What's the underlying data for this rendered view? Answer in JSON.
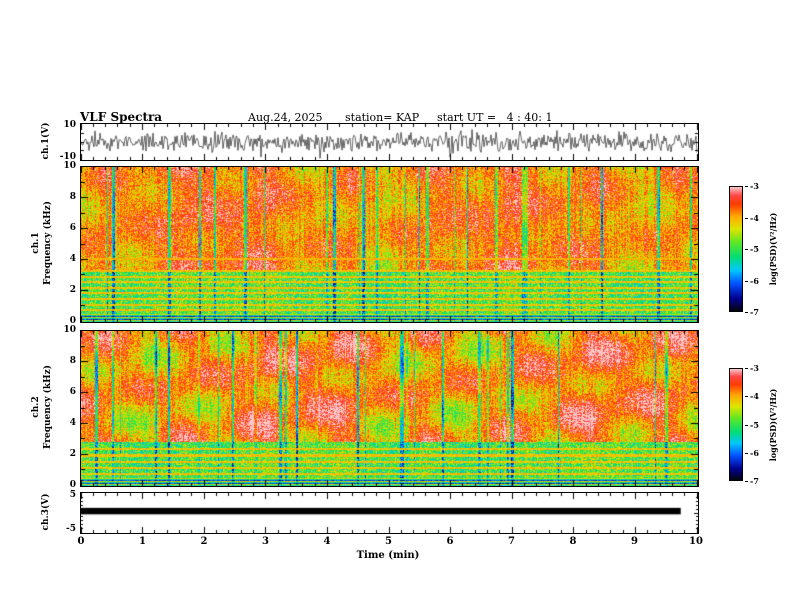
{
  "header": {
    "title": "VLF Spectra",
    "date": "Aug.24, 2025",
    "station": "station= KAP",
    "start_ut": "start UT =   4 : 40: 1"
  },
  "panels": {
    "ch1_wave": {
      "label": "ch.1(V)",
      "ytop": "10",
      "ybottom": "-10"
    },
    "ch1_spec": {
      "channel": "ch.1",
      "axis": "Frequency (kHz)"
    },
    "ch2_spec": {
      "channel": "ch.2",
      "axis": "Frequency (kHz)"
    },
    "ch3_wave": {
      "label": "ch.3(V)",
      "ytop": "5",
      "ybottom": "-5"
    }
  },
  "axes": {
    "xlabel": "Time (min)",
    "xticks": [
      {
        "v": 0,
        "t": "0"
      },
      {
        "v": 1,
        "t": "1"
      },
      {
        "v": 2,
        "t": "2"
      },
      {
        "v": 3,
        "t": "3"
      },
      {
        "v": 4,
        "t": "4"
      },
      {
        "v": 5,
        "t": "5"
      },
      {
        "v": 6,
        "t": "6"
      },
      {
        "v": 7,
        "t": "7"
      },
      {
        "v": 8,
        "t": "8"
      },
      {
        "v": 9,
        "t": "9"
      },
      {
        "v": 10,
        "t": "10"
      }
    ],
    "spec_yticks": [
      {
        "v": 10,
        "t": "10"
      },
      {
        "v": 8,
        "t": "8"
      },
      {
        "v": 6,
        "t": "6"
      },
      {
        "v": 4,
        "t": "4"
      },
      {
        "v": 2,
        "t": "2"
      },
      {
        "v": 0,
        "t": "0"
      }
    ],
    "ch1_yticks": [
      {
        "v": 10,
        "t": "10"
      },
      {
        "v": -10,
        "t": "-10"
      }
    ],
    "ch3_yticks": [
      {
        "v": 5,
        "t": "5"
      },
      {
        "v": -5,
        "t": "-5"
      }
    ]
  },
  "colorbar": {
    "label": "log(PSD)(V²/Hz)",
    "ticks": [
      "-3",
      "-4",
      "-5",
      "-6",
      "-7"
    ],
    "clim": [
      -7,
      -3
    ]
  },
  "colormap": {
    "stops": [
      [
        0,
        "#05050f"
      ],
      [
        0.1,
        "#00008c"
      ],
      [
        0.22,
        "#0050ff"
      ],
      [
        0.33,
        "#00c8ff"
      ],
      [
        0.43,
        "#00dc78"
      ],
      [
        0.55,
        "#5ae628"
      ],
      [
        0.66,
        "#dce600"
      ],
      [
        0.76,
        "#ffaa00"
      ],
      [
        0.86,
        "#ff3c00"
      ],
      [
        0.93,
        "#ff4646"
      ],
      [
        1,
        "#ffc8c8"
      ]
    ]
  },
  "chart_data": [
    {
      "type": "line",
      "name": "ch1-waveform",
      "xlabel": "Time (min)",
      "xlim": [
        0,
        10
      ],
      "ylabel": "ch.1(V)",
      "ylim": [
        -10,
        10
      ],
      "description": "Dense broadband noise waveform spanning roughly ±5 V with frequent excursions toward ±10 V across the full 0–10 min record.",
      "render": {
        "seed": 424242
      }
    },
    {
      "type": "heatmap",
      "name": "ch1-spectrogram",
      "xlim": [
        0,
        10
      ],
      "ylim": [
        0,
        10
      ],
      "ylabel": "ch.1 Frequency (kHz)",
      "colorbar_label": "log(PSD)(V²/Hz)",
      "clim": [
        -7,
        -3
      ],
      "description": "High PSD (red/orange, ≈ -3.5) above ~3.5 kHz with impulsive vertical streaks; yellow-green band (≈ -5) from ~1 to 3.5 kHz crossed by several narrow orange horizontal lines (harmonics); striped dark/green band below ~1 kHz.",
      "render": {
        "seed": 1234567,
        "fmax": 10,
        "band_top": 3.4,
        "lines": [
          0.8,
          1.15,
          1.5,
          1.9,
          2.25,
          2.6,
          2.95,
          3.3,
          4.1
        ],
        "blotch": 0.05
      }
    },
    {
      "type": "heatmap",
      "name": "ch2-spectrogram",
      "xlim": [
        0,
        10
      ],
      "ylim": [
        0,
        10
      ],
      "ylabel": "ch.2 Frequency (kHz)",
      "colorbar_label": "log(PSD)(V²/Hz)",
      "clim": [
        -7,
        -3
      ],
      "description": "High PSD red/pink field above ~3 kHz with pale blotchy patches near 5–8 kHz and impulsive vertical streaks; yellow-green band (≈ -5) from ~1 to 3 kHz with narrow orange horizontal lines; striped dark/green band below ~1 kHz.",
      "render": {
        "seed": 7654321,
        "fmax": 10,
        "band_top": 2.9,
        "lines": [
          0.8,
          1.2,
          1.6,
          2.0,
          2.4
        ],
        "blotch": 0.09
      }
    },
    {
      "type": "line",
      "name": "ch3-waveform",
      "xlim": [
        0,
        10
      ],
      "ylabel": "ch.3(V)",
      "ylim": [
        -5,
        5
      ],
      "description": "Flat thick black trace at ≈ +0.5 V (constant/saturated channel) extending from 0 to ≈ 9.7 min.",
      "render": {
        "bar_start": 0,
        "bar_end": 9.72,
        "bar_center": 0.5,
        "bar_halfwidth": 0.85
      }
    }
  ]
}
